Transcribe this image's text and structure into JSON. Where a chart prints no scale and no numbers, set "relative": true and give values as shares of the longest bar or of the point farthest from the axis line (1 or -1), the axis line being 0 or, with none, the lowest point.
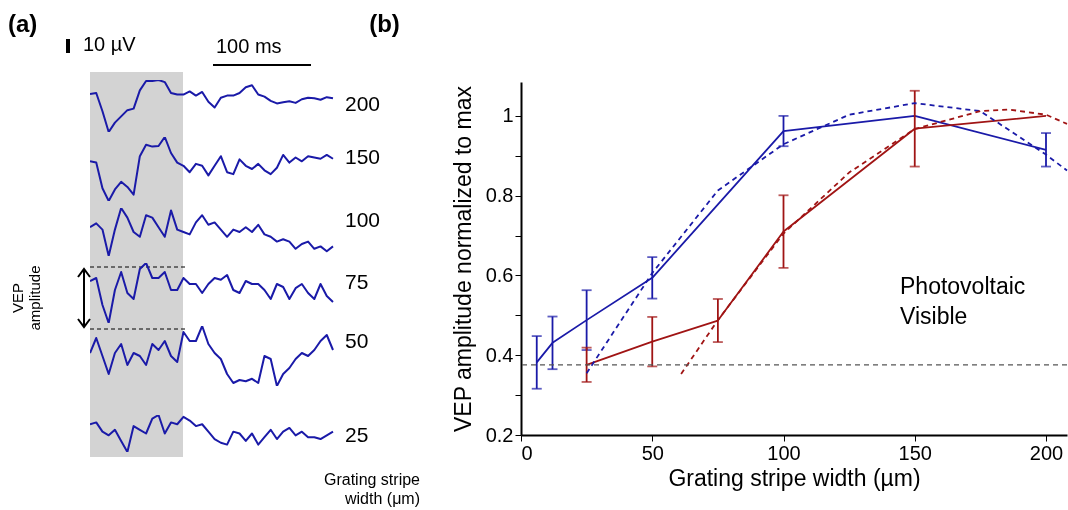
{
  "chart_data": [
    {
      "type": "line",
      "title": "(a)",
      "relative": true,
      "annotations": [
        "10 µV",
        "100 ms",
        "VEP amplitude",
        "Grating stripe width (μm)"
      ],
      "categories": [
        null,
        null,
        null,
        null,
        null,
        null,
        null,
        null,
        null,
        null,
        null,
        null,
        null,
        null,
        null,
        null,
        null,
        null,
        null,
        null,
        null,
        null,
        null,
        null,
        null,
        null,
        null,
        null,
        null,
        null,
        null,
        null,
        null,
        null,
        null,
        null,
        null,
        null,
        null,
        null
      ],
      "series": [
        {
          "name": "200",
          "color": "#1a1aa8",
          "values": [
            0.73,
            0.75,
            0.4,
            0.0,
            0.18,
            0.3,
            0.42,
            0.45,
            0.8,
            0.98,
            0.98,
            1.0,
            0.96,
            0.75,
            0.72,
            0.72,
            0.78,
            0.7,
            0.77,
            0.58,
            0.47,
            0.66,
            0.7,
            0.7,
            0.75,
            0.86,
            0.9,
            0.72,
            0.68,
            0.6,
            0.55,
            0.57,
            0.59,
            0.56,
            0.63,
            0.66,
            0.65,
            0.62,
            0.67,
            0.65
          ]
        }
      ]
    },
    {
      "type": "line",
      "relative": true,
      "categories": [
        null,
        null,
        null,
        null,
        null,
        null,
        null,
        null,
        null,
        null,
        null,
        null,
        null,
        null,
        null,
        null,
        null,
        null,
        null,
        null,
        null,
        null,
        null,
        null,
        null,
        null,
        null,
        null,
        null,
        null,
        null,
        null,
        null,
        null,
        null,
        null,
        null,
        null,
        null,
        null
      ],
      "series": [
        {
          "name": "150",
          "color": "#1a1aa8",
          "values": [
            0.62,
            0.6,
            0.2,
            0.0,
            0.18,
            0.3,
            0.22,
            0.1,
            0.7,
            0.88,
            0.85,
            0.86,
            1.0,
            0.75,
            0.6,
            0.55,
            0.45,
            0.58,
            0.55,
            0.4,
            0.55,
            0.7,
            0.45,
            0.42,
            0.65,
            0.55,
            0.5,
            0.58,
            0.48,
            0.42,
            0.52,
            0.72,
            0.6,
            0.68,
            0.62,
            0.7,
            0.68,
            0.66,
            0.72,
            0.66
          ]
        }
      ]
    },
    {
      "type": "line",
      "relative": true,
      "categories": [
        null,
        null,
        null,
        null,
        null,
        null,
        null,
        null,
        null,
        null,
        null,
        null,
        null,
        null,
        null,
        null,
        null,
        null,
        null,
        null,
        null,
        null,
        null,
        null,
        null,
        null,
        null,
        null,
        null,
        null,
        null,
        null,
        null,
        null,
        null,
        null,
        null,
        null,
        null,
        null
      ],
      "series": [
        {
          "name": "100",
          "color": "#1a1aa8",
          "values": [
            0.6,
            0.68,
            0.55,
            0.0,
            0.55,
            1.0,
            0.8,
            0.5,
            0.4,
            0.85,
            0.8,
            0.6,
            0.4,
            0.95,
            0.55,
            0.5,
            0.45,
            0.7,
            0.85,
            0.65,
            0.7,
            0.55,
            0.4,
            0.55,
            0.5,
            0.6,
            0.5,
            0.65,
            0.45,
            0.4,
            0.3,
            0.35,
            0.3,
            0.15,
            0.25,
            0.3,
            0.15,
            0.2,
            0.1,
            0.2
          ]
        }
      ]
    },
    {
      "type": "line",
      "relative": true,
      "categories": [
        null,
        null,
        null,
        null,
        null,
        null,
        null,
        null,
        null,
        null,
        null,
        null,
        null,
        null,
        null,
        null,
        null,
        null,
        null,
        null,
        null,
        null,
        null,
        null,
        null,
        null,
        null,
        null,
        null,
        null,
        null,
        null,
        null,
        null,
        null,
        null,
        null,
        null,
        null,
        null
      ],
      "series": [
        {
          "name": "75",
          "color": "#1a1aa8",
          "values": [
            0.7,
            0.75,
            0.3,
            0.0,
            0.55,
            0.85,
            0.5,
            0.4,
            0.9,
            1.0,
            0.75,
            0.75,
            0.85,
            0.55,
            0.55,
            0.75,
            0.65,
            0.65,
            0.5,
            0.65,
            0.75,
            0.72,
            0.8,
            0.55,
            0.5,
            0.7,
            0.65,
            0.65,
            0.55,
            0.4,
            0.65,
            0.6,
            0.4,
            0.58,
            0.65,
            0.5,
            0.4,
            0.65,
            0.45,
            0.35
          ]
        }
      ]
    },
    {
      "type": "line",
      "relative": true,
      "categories": [
        null,
        null,
        null,
        null,
        null,
        null,
        null,
        null,
        null,
        null,
        null,
        null,
        null,
        null,
        null,
        null,
        null,
        null,
        null,
        null,
        null,
        null,
        null,
        null,
        null,
        null,
        null,
        null,
        null,
        null,
        null,
        null,
        null,
        null,
        null,
        null,
        null,
        null,
        null,
        null
      ],
      "series": [
        {
          "name": "50",
          "color": "#1a1aa8",
          "values": [
            0.55,
            0.8,
            0.5,
            0.2,
            0.55,
            0.7,
            0.35,
            0.55,
            0.5,
            0.35,
            0.7,
            0.6,
            0.75,
            0.5,
            0.4,
            0.9,
            0.75,
            0.75,
            1.0,
            0.7,
            0.55,
            0.45,
            0.2,
            0.05,
            0.1,
            0.08,
            0.12,
            0.05,
            0.5,
            0.45,
            0.0,
            0.2,
            0.3,
            0.45,
            0.55,
            0.5,
            0.6,
            0.75,
            0.85,
            0.6
          ]
        }
      ]
    },
    {
      "type": "line",
      "relative": true,
      "categories": [
        null,
        null,
        null,
        null,
        null,
        null,
        null,
        null,
        null,
        null,
        null,
        null,
        null,
        null,
        null,
        null,
        null,
        null,
        null,
        null,
        null,
        null,
        null,
        null,
        null,
        null,
        null,
        null,
        null,
        null,
        null,
        null,
        null,
        null,
        null,
        null,
        null,
        null,
        null,
        null
      ],
      "series": [
        {
          "name": "25",
          "color": "#1a1aa8",
          "values": [
            0.75,
            0.8,
            0.55,
            0.45,
            0.6,
            0.3,
            0.0,
            0.7,
            0.6,
            0.5,
            0.9,
            1.0,
            0.5,
            0.8,
            0.75,
            0.95,
            0.85,
            0.7,
            0.75,
            0.55,
            0.35,
            0.25,
            0.2,
            0.55,
            0.5,
            0.3,
            0.5,
            0.2,
            0.4,
            0.6,
            0.35,
            0.55,
            0.65,
            0.45,
            0.55,
            0.4,
            0.4,
            0.35,
            0.45,
            0.55
          ]
        }
      ]
    },
    {
      "type": "line",
      "title": "(b)",
      "xlabel": "Grating stripe width (µm)",
      "ylabel": "VEP amplitude normalized to max",
      "xlim": [
        0,
        208
      ],
      "ylim": [
        0.2,
        1.085
      ],
      "xticks": [
        0,
        50,
        100,
        150,
        200
      ],
      "yticks": [
        0.2,
        {
          "value": 0.3,
          "label": null
        },
        0.4,
        {
          "value": 0.5,
          "label": null
        },
        0.6,
        {
          "value": 0.7,
          "label": null
        },
        0.8,
        {
          "value": 0.9,
          "label": null
        },
        1
      ],
      "series": [
        {
          "color": "#1a1aa8",
          "x": [
            6,
            12,
            25,
            50,
            100,
            150,
            200
          ],
          "values": [
            0.382,
            0.431,
            0.488,
            0.594,
            0.962,
            1.0,
            0.915
          ],
          "errors": [
            0.066,
            0.066,
            0.075,
            0.052,
            0.038,
            null,
            0.042
          ]
        },
        {
          "color": "#a01414",
          "x": [
            25,
            50,
            75,
            100,
            150,
            200
          ],
          "values": [
            0.376,
            0.434,
            0.487,
            0.71,
            0.968,
            1.0
          ],
          "errors": [
            0.043,
            0.062,
            0.054,
            0.091,
            0.095,
            null
          ]
        },
        {
          "color": "#1a1aa8",
          "line_style": "dashed",
          "x": [
            25,
            50,
            75,
            100,
            125,
            150,
            175,
            200,
            208
          ],
          "values": [
            0.355,
            0.606,
            0.813,
            0.929,
            1.003,
            1.032,
            1.012,
            0.903,
            0.863
          ]
        },
        {
          "color": "#a01414",
          "line_style": "dashed",
          "x": [
            61,
            75,
            100,
            125,
            150,
            175,
            186,
            200,
            208
          ],
          "values": [
            0.353,
            0.488,
            0.705,
            0.858,
            0.967,
            1.012,
            1.016,
            1.003,
            0.98
          ]
        }
      ],
      "ref_lines": [
        {
          "axis": "y",
          "value": 0.376,
          "color": "#555555",
          "line_style": "dashed"
        }
      ],
      "annotations": [
        "Photovoltaic",
        "Visible"
      ]
    }
  ]
}
